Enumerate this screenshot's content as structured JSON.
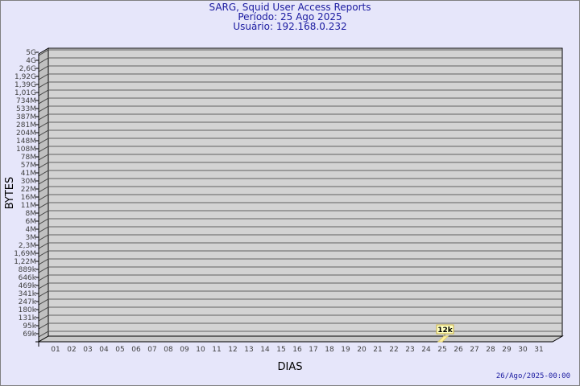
{
  "chart_data": {
    "type": "bar",
    "title": "SARG, Squid User Access Reports",
    "subtitle": [
      "Período: 25 Ago 2025",
      "Usuário: 192.168.0.232"
    ],
    "xlabel": "DIAS",
    "ylabel": "BYTES",
    "scale": "log",
    "grid": true,
    "y_tick_labels": [
      "5G",
      "4G",
      "2,6G",
      "1,92G",
      "1,39G",
      "1,01G",
      "734M",
      "533M",
      "387M",
      "281M",
      "204M",
      "148M",
      "108M",
      "78M",
      "57M",
      "41M",
      "30M",
      "22M",
      "16M",
      "11M",
      "8M",
      "6M",
      "4M",
      "3M",
      "2,3M",
      "1,69M",
      "1,22M",
      "889k",
      "646k",
      "469k",
      "341k",
      "247k",
      "180k",
      "131k",
      "95k",
      "69k"
    ],
    "categories": [
      "01",
      "02",
      "03",
      "04",
      "05",
      "06",
      "07",
      "08",
      "09",
      "10",
      "11",
      "12",
      "13",
      "14",
      "15",
      "16",
      "17",
      "18",
      "19",
      "20",
      "21",
      "22",
      "23",
      "24",
      "25",
      "26",
      "27",
      "28",
      "29",
      "30",
      "31"
    ],
    "values": [
      {
        "day": "25",
        "bytes": 12000,
        "label": "12k"
      }
    ],
    "bar_color": "#fff0a0",
    "label_bg": "#ffffc0",
    "wall_color": "#d3d3d3",
    "title_color": "#1a1aa0"
  },
  "footer": {
    "timestamp": "26/Ago/2025-00:00"
  }
}
